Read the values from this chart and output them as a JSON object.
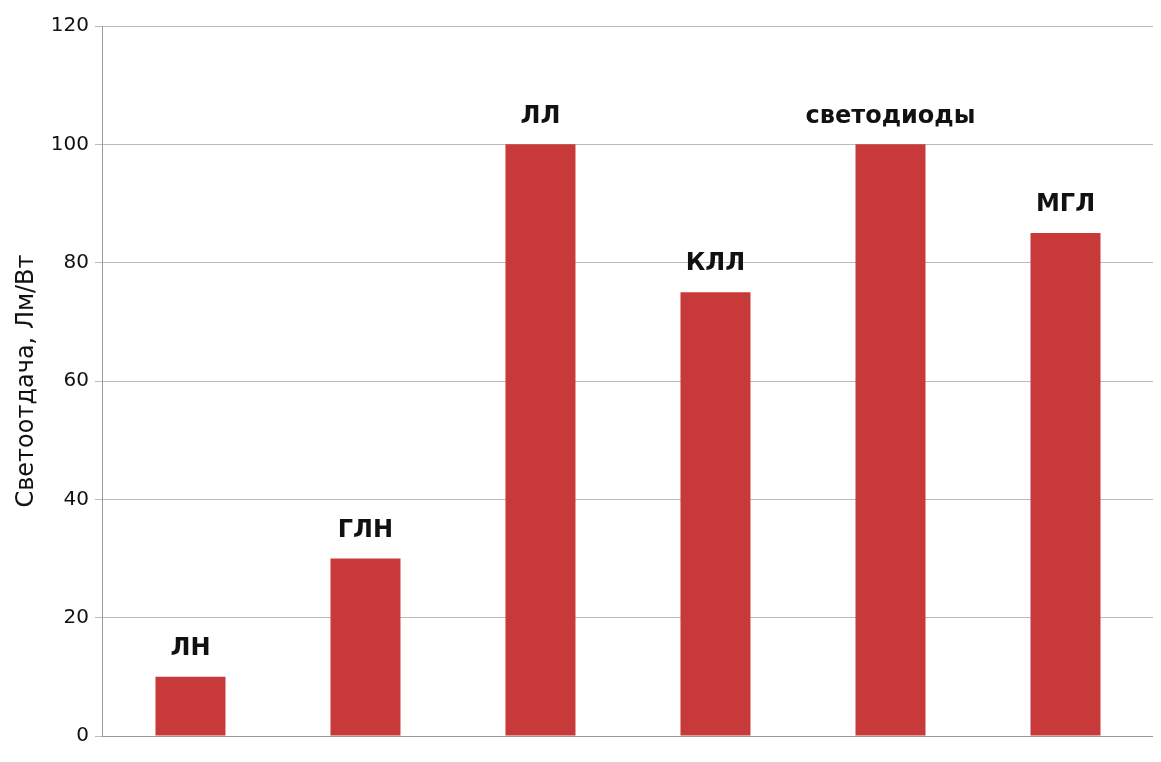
{
  "chart_data": {
    "type": "bar",
    "ylabel": "Светоотдача, Лм/Вт",
    "categories": [
      "ЛН",
      "ГЛН",
      "ЛЛ",
      "КЛЛ",
      "светодиоды",
      "МГЛ"
    ],
    "values": [
      10,
      30,
      100,
      75,
      100,
      85
    ],
    "color": "#c83a3a",
    "ylim": [
      0,
      120
    ],
    "yticks": [
      0,
      20,
      40,
      60,
      80,
      100,
      120
    ],
    "grid": "y",
    "legend": false
  }
}
